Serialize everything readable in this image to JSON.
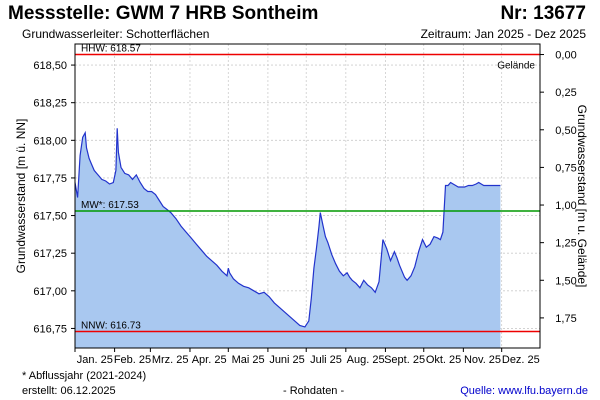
{
  "header": {
    "title": "Messstelle: GWM 7 HRB Sontheim",
    "number": "Nr: 13677",
    "aquifer": "Grundwasserleiter:   Schotterflächen",
    "period": "Zeitraum: Jan 2025 - Dez 2025"
  },
  "footer": {
    "footnote": "* Abflussjahr (2021-2024)",
    "created": "erstellt:  06.12.2025",
    "rawdata": "- Rohdaten -",
    "source": "Quelle: www.lfu.bayern.de"
  },
  "colors": {
    "fill": "#a9c8f0",
    "line": "#2233cc",
    "hhw": "#ee0000",
    "nnw": "#ee0000",
    "mw": "#009900",
    "grid": "#cccccc"
  },
  "chart_data": {
    "type": "area",
    "ylabel": "Grundwasserstand [m ü. NN]",
    "y2label": "Grundwasserstand [m u. Gelände]",
    "ylim": [
      616.62,
      618.64
    ],
    "y2lim": [
      -0.07,
      1.95
    ],
    "yticks": [
      "616,75",
      "617,00",
      "617,25",
      "617,50",
      "617,75",
      "618,00",
      "618,25",
      "618,50"
    ],
    "yticks_values": [
      616.75,
      617.0,
      617.25,
      617.5,
      617.75,
      618.0,
      618.25,
      618.5
    ],
    "y2ticks": [
      "0,00",
      "0,25",
      "0,50",
      "0,75",
      "1,00",
      "1,25",
      "1,50",
      "1,75"
    ],
    "y2ticks_values": [
      0.0,
      0.25,
      0.5,
      0.75,
      1.0,
      1.25,
      1.5,
      1.75
    ],
    "xlim": [
      "2025-01-01",
      "2025-12-31"
    ],
    "xticks": [
      "Jan. 25",
      "Feb. 25",
      "Mrz. 25",
      "Apr. 25",
      "Mai 25",
      "Juni 25",
      "Juli 25",
      "Aug. 25",
      "Sept. 25",
      "Okt. 25",
      "Nov. 25",
      "Dez. 25"
    ],
    "xticks_dates": [
      "2025-01-01",
      "2025-02-01",
      "2025-03-01",
      "2025-04-01",
      "2025-05-01",
      "2025-06-01",
      "2025-07-01",
      "2025-08-01",
      "2025-09-01",
      "2025-10-01",
      "2025-11-01",
      "2025-12-01"
    ],
    "grid": true,
    "reference_lines": [
      {
        "label": "HHW: 618.57",
        "value": 618.57,
        "color": "#ee0000"
      },
      {
        "label": "MW*: 617.53",
        "value": 617.53,
        "color": "#009900"
      },
      {
        "label": "NNW: 616.73",
        "value": 616.73,
        "color": "#ee0000"
      }
    ],
    "surface_label": "Gelände",
    "surface_level": 618.57,
    "series": [
      {
        "x": [
          "2025-01-01",
          "2025-01-03",
          "2025-01-05",
          "2025-01-07",
          "2025-01-09",
          "2025-01-10",
          "2025-01-12",
          "2025-01-14",
          "2025-01-16",
          "2025-01-18",
          "2025-01-20",
          "2025-01-22",
          "2025-01-25",
          "2025-01-28",
          "2025-01-31",
          "2025-02-02",
          "2025-02-03",
          "2025-02-04",
          "2025-02-06",
          "2025-02-09",
          "2025-02-12",
          "2025-02-15",
          "2025-02-18",
          "2025-02-21",
          "2025-02-24",
          "2025-02-27",
          "2025-03-02",
          "2025-03-05",
          "2025-03-08",
          "2025-03-11",
          "2025-03-14",
          "2025-03-17",
          "2025-03-21",
          "2025-03-25",
          "2025-03-29",
          "2025-04-02",
          "2025-04-06",
          "2025-04-10",
          "2025-04-14",
          "2025-04-18",
          "2025-04-22",
          "2025-04-26",
          "2025-04-30",
          "2025-05-01",
          "2025-05-02",
          "2025-05-05",
          "2025-05-09",
          "2025-05-13",
          "2025-05-17",
          "2025-05-21",
          "2025-05-25",
          "2025-05-29",
          "2025-06-02",
          "2025-06-06",
          "2025-06-10",
          "2025-06-14",
          "2025-06-18",
          "2025-06-22",
          "2025-06-26",
          "2025-06-30",
          "2025-07-03",
          "2025-07-05",
          "2025-07-07",
          "2025-07-09",
          "2025-07-11",
          "2025-07-12",
          "2025-07-14",
          "2025-07-16",
          "2025-07-18",
          "2025-07-21",
          "2025-07-24",
          "2025-07-27",
          "2025-07-30",
          "2025-08-02",
          "2025-08-04",
          "2025-08-06",
          "2025-08-09",
          "2025-08-12",
          "2025-08-15",
          "2025-08-18",
          "2025-08-21",
          "2025-08-24",
          "2025-08-27",
          "2025-08-30",
          "2025-09-02",
          "2025-09-05",
          "2025-09-08",
          "2025-09-10",
          "2025-09-12",
          "2025-09-14",
          "2025-09-16",
          "2025-09-18",
          "2025-09-21",
          "2025-09-24",
          "2025-09-27",
          "2025-09-30",
          "2025-10-03",
          "2025-10-06",
          "2025-10-09",
          "2025-10-12",
          "2025-10-14",
          "2025-10-16",
          "2025-10-18",
          "2025-10-20",
          "2025-10-22",
          "2025-10-24",
          "2025-10-26",
          "2025-10-28",
          "2025-10-30",
          "2025-11-02",
          "2025-11-05",
          "2025-11-08",
          "2025-11-11",
          "2025-11-13",
          "2025-11-15",
          "2025-11-17",
          "2025-11-19",
          "2025-11-21",
          "2025-11-24",
          "2025-11-27",
          "2025-11-30"
        ],
        "values": [
          617.72,
          617.62,
          617.9,
          618.02,
          618.05,
          617.95,
          617.88,
          617.84,
          617.8,
          617.78,
          617.76,
          617.74,
          617.73,
          617.71,
          617.72,
          617.8,
          618.08,
          617.92,
          617.82,
          617.78,
          617.77,
          617.74,
          617.77,
          617.72,
          617.68,
          617.66,
          617.66,
          617.64,
          617.6,
          617.56,
          617.54,
          617.52,
          617.48,
          617.43,
          617.39,
          617.35,
          617.31,
          617.27,
          617.23,
          617.2,
          617.17,
          617.13,
          617.1,
          617.15,
          617.12,
          617.08,
          617.05,
          617.03,
          617.02,
          617.0,
          616.98,
          616.99,
          616.96,
          616.92,
          616.89,
          616.86,
          616.83,
          616.8,
          616.77,
          616.76,
          616.8,
          616.95,
          617.15,
          617.28,
          617.43,
          617.52,
          617.44,
          617.36,
          617.32,
          617.24,
          617.18,
          617.13,
          617.1,
          617.12,
          617.09,
          617.07,
          617.05,
          617.02,
          617.07,
          617.04,
          617.02,
          616.99,
          617.06,
          617.34,
          617.28,
          617.2,
          617.26,
          617.22,
          617.17,
          617.13,
          617.09,
          617.07,
          617.1,
          617.16,
          617.26,
          617.34,
          617.29,
          617.31,
          617.36,
          617.35,
          617.34,
          617.39,
          617.7,
          617.7,
          617.72,
          617.71,
          617.7,
          617.69,
          617.69,
          617.69,
          617.7,
          617.7,
          617.71,
          617.72,
          617.71,
          617.7,
          617.7,
          617.7,
          617.7,
          617.7,
          617.7
        ]
      }
    ]
  }
}
